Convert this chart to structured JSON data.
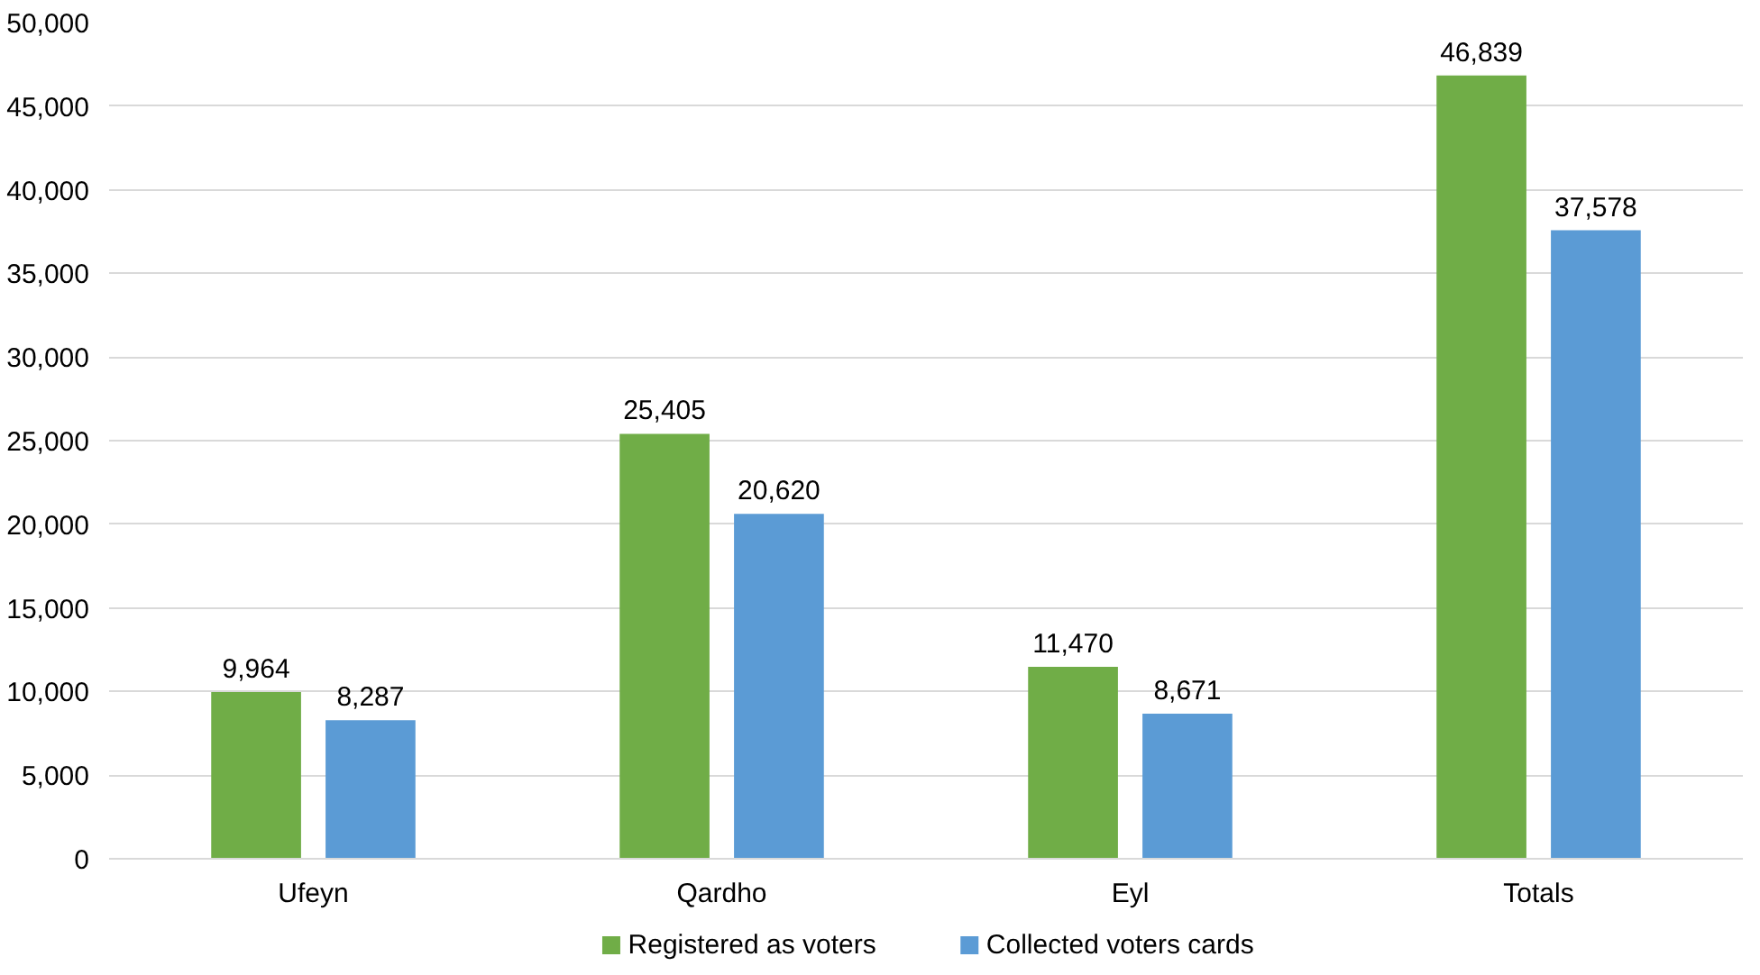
{
  "chart_data": {
    "type": "bar",
    "categories": [
      "Ufeyn",
      "Qardho",
      "Eyl",
      "Totals"
    ],
    "series": [
      {
        "name": "Registered as voters",
        "color": "#70ad47",
        "values": [
          9964,
          25405,
          11470,
          46839
        ],
        "value_labels": [
          "9,964",
          "25,405",
          "11,470",
          "46,839"
        ]
      },
      {
        "name": "Collected voters cards",
        "color": "#5b9bd5",
        "values": [
          8287,
          20620,
          8671,
          37578
        ],
        "value_labels": [
          "8,287",
          "20,620",
          "8,671",
          "37,578"
        ]
      }
    ],
    "ylim": [
      0,
      50000
    ],
    "yticks": [
      {
        "value": 0,
        "label": "0"
      },
      {
        "value": 5000,
        "label": "5,000"
      },
      {
        "value": 10000,
        "label": "10,000"
      },
      {
        "value": 15000,
        "label": "15,000"
      },
      {
        "value": 20000,
        "label": "20,000"
      },
      {
        "value": 25000,
        "label": "25,000"
      },
      {
        "value": 30000,
        "label": "30,000"
      },
      {
        "value": 35000,
        "label": "35,000"
      },
      {
        "value": 40000,
        "label": "40,000"
      },
      {
        "value": 45000,
        "label": "45,000"
      },
      {
        "value": 50000,
        "label": "50,000"
      }
    ],
    "grid": "y",
    "legend": "bottom",
    "data_labels": true
  }
}
